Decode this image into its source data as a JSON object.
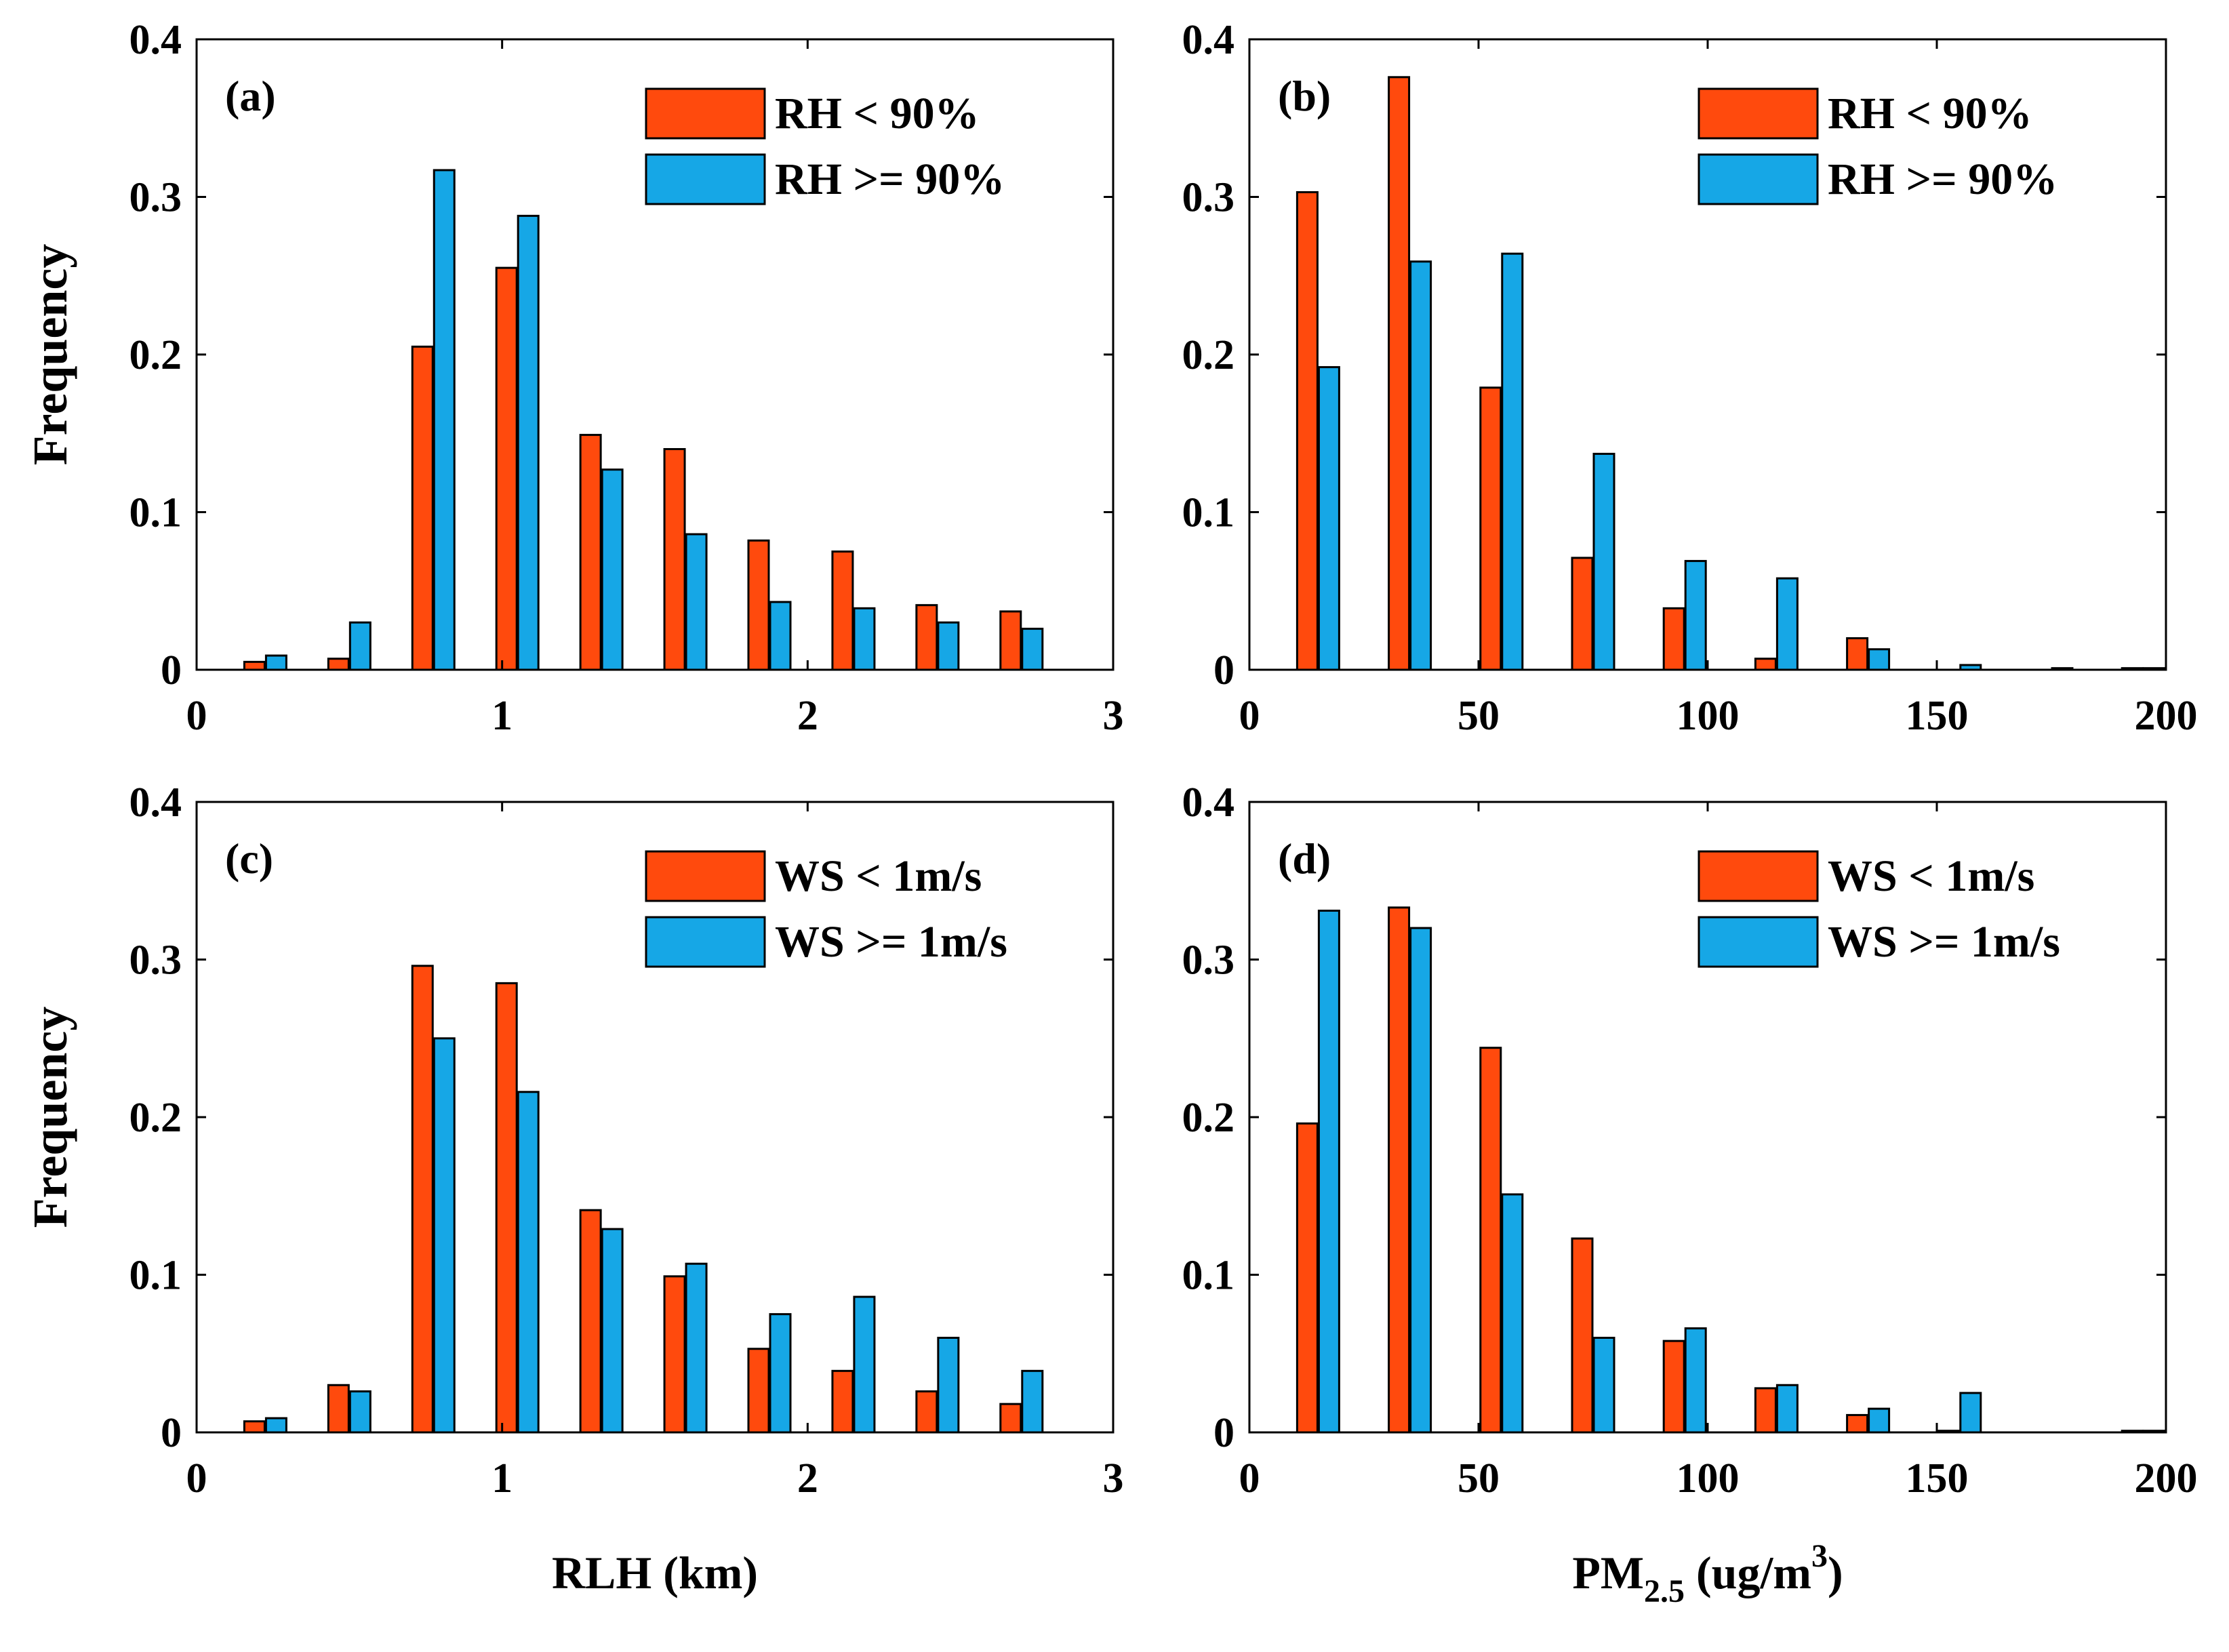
{
  "colors": {
    "series1": "#FF4A0D",
    "series2": "#16A7E6"
  },
  "chart_data": [
    {
      "type": "bar",
      "panel": "(a)",
      "xlabel": "",
      "ylabel": "Frequency",
      "xlim": [
        0,
        3
      ],
      "ylim": [
        0,
        0.4
      ],
      "xticks": [
        0,
        1,
        2,
        3
      ],
      "yticks": [
        0,
        0.1,
        0.2,
        0.3,
        0.4
      ],
      "xtick_labels": [
        "0",
        "1",
        "2",
        "3"
      ],
      "ytick_labels": [
        "0",
        "0.1",
        "0.2",
        "0.3",
        "0.4"
      ],
      "legend_position": "top-right",
      "x": [
        0.225,
        0.5,
        0.775,
        1.05,
        1.325,
        1.6,
        1.875,
        2.15,
        2.425,
        2.7
      ],
      "series": [
        {
          "name": "RH < 90%",
          "values": [
            0.005,
            0.007,
            0.205,
            0.255,
            0.149,
            0.14,
            0.082,
            0.075,
            0.041,
            0.037
          ]
        },
        {
          "name": "RH >= 90%",
          "values": [
            0.009,
            0.03,
            0.317,
            0.288,
            0.127,
            0.086,
            0.043,
            0.039,
            0.03,
            0.026
          ]
        }
      ]
    },
    {
      "type": "bar",
      "panel": "(b)",
      "xlabel": "",
      "ylabel": "",
      "xlim": [
        0,
        200
      ],
      "ylim": [
        0,
        0.4
      ],
      "xticks": [
        0,
        50,
        100,
        150,
        200
      ],
      "yticks": [
        0,
        0.1,
        0.2,
        0.3,
        0.4
      ],
      "xtick_labels": [
        "0",
        "50",
        "100",
        "150",
        "200"
      ],
      "ytick_labels": [
        "0",
        "0.1",
        "0.2",
        "0.3",
        "0.4"
      ],
      "legend_position": "top-right",
      "x": [
        15,
        35,
        55,
        75,
        95,
        115,
        135,
        155,
        175,
        195
      ],
      "series": [
        {
          "name": "RH < 90%",
          "values": [
            0.303,
            0.376,
            0.179,
            0.071,
            0.039,
            0.007,
            0.02,
            0.0,
            0.0,
            0.001
          ]
        },
        {
          "name": "RH >= 90%",
          "values": [
            0.192,
            0.259,
            0.264,
            0.137,
            0.069,
            0.058,
            0.013,
            0.003,
            0.001,
            0.001
          ]
        }
      ]
    },
    {
      "type": "bar",
      "panel": "(c)",
      "xlabel": "RLH (km)",
      "ylabel": "Frequency",
      "xlim": [
        0,
        3
      ],
      "ylim": [
        0,
        0.4
      ],
      "xticks": [
        0,
        1,
        2,
        3
      ],
      "yticks": [
        0,
        0.1,
        0.2,
        0.3,
        0.4
      ],
      "xtick_labels": [
        "0",
        "1",
        "2",
        "3"
      ],
      "ytick_labels": [
        "0",
        "0.1",
        "0.2",
        "0.3",
        "0.4"
      ],
      "legend_position": "top-right",
      "x": [
        0.225,
        0.5,
        0.775,
        1.05,
        1.325,
        1.6,
        1.875,
        2.15,
        2.425,
        2.7
      ],
      "series": [
        {
          "name": "WS < 1m/s",
          "values": [
            0.007,
            0.03,
            0.296,
            0.285,
            0.141,
            0.099,
            0.053,
            0.039,
            0.026,
            0.018
          ]
        },
        {
          "name": "WS >= 1m/s",
          "values": [
            0.009,
            0.026,
            0.25,
            0.216,
            0.129,
            0.107,
            0.075,
            0.086,
            0.06,
            0.039
          ]
        }
      ]
    },
    {
      "type": "bar",
      "panel": "(d)",
      "xlabel_main": "PM",
      "xlabel_sub": "2.5",
      "xlabel_units": " (ug/m",
      "xlabel_sup": "3",
      "xlabel_close": ")",
      "ylabel": "",
      "xlim": [
        0,
        200
      ],
      "ylim": [
        0,
        0.4
      ],
      "xticks": [
        0,
        50,
        100,
        150,
        200
      ],
      "yticks": [
        0,
        0.1,
        0.2,
        0.3,
        0.4
      ],
      "xtick_labels": [
        "0",
        "50",
        "100",
        "150",
        "200"
      ],
      "ytick_labels": [
        "0",
        "0.1",
        "0.2",
        "0.3",
        "0.4"
      ],
      "legend_position": "top-right",
      "x": [
        15,
        35,
        55,
        75,
        95,
        115,
        135,
        155,
        175,
        195
      ],
      "series": [
        {
          "name": "WS < 1m/s",
          "values": [
            0.196,
            0.333,
            0.244,
            0.123,
            0.058,
            0.028,
            0.011,
            0.001,
            0.0,
            0.001
          ]
        },
        {
          "name": "WS >= 1m/s",
          "values": [
            0.331,
            0.32,
            0.151,
            0.06,
            0.066,
            0.03,
            0.015,
            0.025,
            0.0,
            0.001
          ]
        }
      ]
    }
  ]
}
